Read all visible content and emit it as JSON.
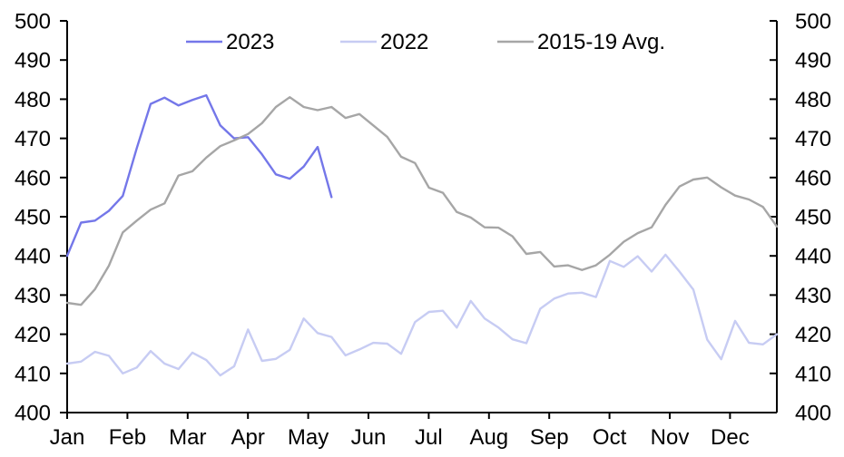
{
  "chart_data": {
    "type": "line",
    "title": "",
    "legend_position": "top",
    "x_axis": {
      "tick_labels": [
        "Jan",
        "Feb",
        "Mar",
        "Apr",
        "May",
        "Jun",
        "Jul",
        "Aug",
        "Sep",
        "Oct",
        "Nov",
        "Dec"
      ],
      "points_per_year": 52,
      "frequency": "weekly"
    },
    "y_axis": {
      "min": 400,
      "max": 500,
      "step": 10,
      "tick_labels": [
        "400",
        "410",
        "420",
        "430",
        "440",
        "450",
        "460",
        "470",
        "480",
        "490",
        "500"
      ],
      "sides": "both"
    },
    "axis_color": "#000000",
    "background_color": "#ffffff",
    "series": [
      {
        "name": "2023",
        "color": "#7477e9",
        "start_week": 0,
        "values": [
          440.0,
          448.5,
          449.0,
          451.5,
          455.3,
          467.5,
          478.8,
          480.4,
          478.4,
          479.8,
          481.0,
          473.3,
          470.0,
          470.3,
          465.9,
          460.8,
          459.7,
          462.8,
          467.8,
          455.0
        ]
      },
      {
        "name": "2022",
        "color": "#c7ccf3",
        "start_week": 0,
        "values": [
          412.5,
          413.0,
          415.5,
          414.5,
          410.0,
          411.5,
          415.7,
          412.5,
          411.1,
          415.3,
          413.4,
          409.5,
          411.8,
          421.2,
          413.2,
          413.7,
          416.0,
          424.0,
          420.3,
          419.3,
          414.6,
          416.1,
          417.8,
          417.6,
          415.0,
          423.1,
          425.7,
          426.0,
          421.7,
          428.5,
          424.0,
          421.7,
          418.7,
          417.7,
          426.5,
          429.1,
          430.4,
          430.6,
          429.5,
          438.7,
          437.2,
          439.9,
          436.0,
          440.3,
          436.0,
          431.4,
          418.6,
          413.6,
          423.4,
          417.8,
          417.4,
          420.0
        ]
      },
      {
        "name": "2015-19 Avg.",
        "color": "#a6a6a6",
        "start_week": 0,
        "values": [
          428.0,
          427.5,
          431.5,
          437.5,
          446.0,
          449.0,
          451.8,
          453.4,
          460.5,
          461.6,
          465.1,
          468.0,
          469.5,
          471.1,
          473.9,
          478.0,
          480.5,
          478.0,
          477.2,
          478.0,
          475.2,
          476.2,
          473.3,
          470.4,
          465.3,
          463.7,
          457.4,
          456.1,
          451.2,
          449.8,
          447.3,
          447.2,
          445.0,
          440.5,
          441.0,
          437.3,
          437.6,
          436.4,
          437.6,
          440.3,
          443.6,
          445.8,
          447.3,
          453.0,
          457.7,
          459.5,
          460.0,
          457.5,
          455.4,
          454.4,
          452.5,
          447.5
        ]
      }
    ]
  }
}
